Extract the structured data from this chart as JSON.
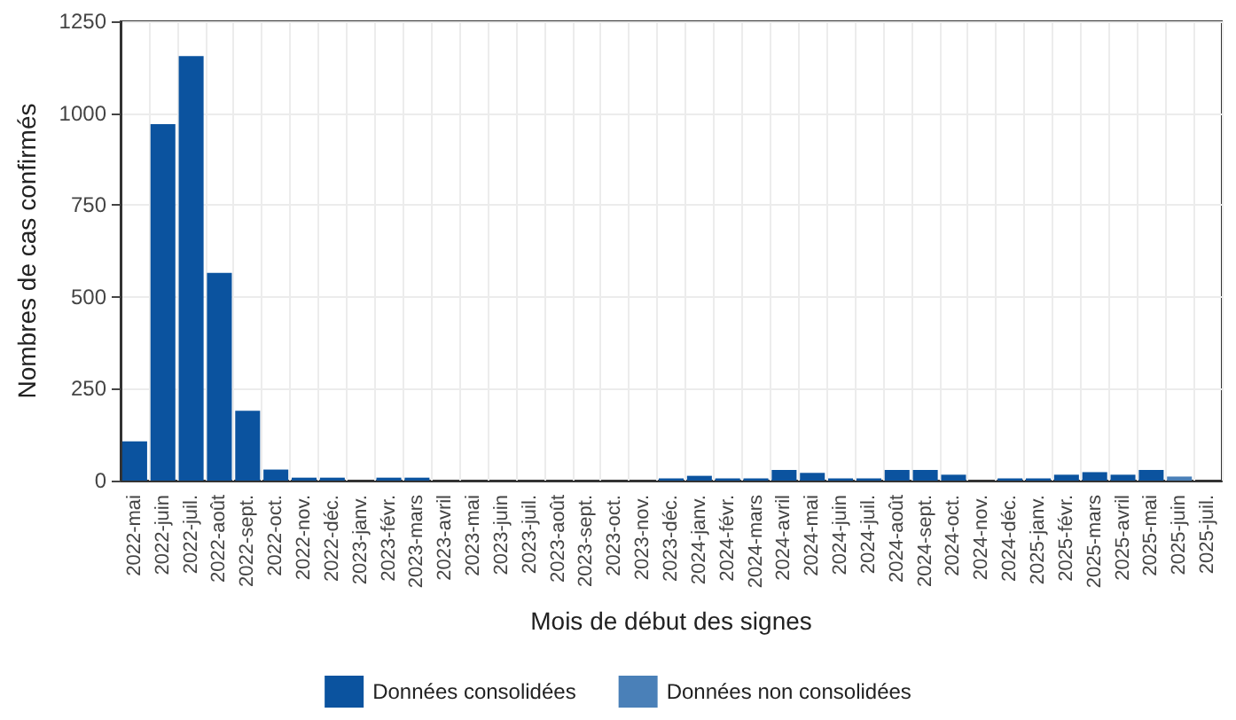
{
  "chart_data": {
    "type": "bar",
    "stacked": true,
    "xlabel": "Mois de début des signes",
    "ylabel": "Nombres de cas confirmés",
    "categories": [
      "2022-mai",
      "2022-juin",
      "2022-juil.",
      "2022-août",
      "2022-sept.",
      "2022-oct.",
      "2022-nov.",
      "2022-déc.",
      "2023-janv.",
      "2023-févr.",
      "2023-mars",
      "2023-avril",
      "2023-mai",
      "2023-juin",
      "2023-juil.",
      "2023-août",
      "2023-sept.",
      "2023-oct.",
      "2023-nov.",
      "2023-déc.",
      "2024-janv.",
      "2024-févr.",
      "2024-mars",
      "2024-avril",
      "2024-mai",
      "2024-juin",
      "2024-juil.",
      "2024-août",
      "2024-sept.",
      "2024-oct.",
      "2024-nov.",
      "2024-déc.",
      "2025-janv.",
      "2025-févr.",
      "2025-mars",
      "2025-avril",
      "2025-mai",
      "2025-juin",
      "2025-juil."
    ],
    "series": [
      {
        "name": "Données consolidées",
        "color": "#0b539f",
        "values": [
          107,
          970,
          1155,
          565,
          190,
          30,
          8,
          8,
          0,
          8,
          8,
          0,
          0,
          0,
          0,
          0,
          0,
          0,
          0,
          6,
          13,
          6,
          6,
          29,
          21,
          6,
          6,
          29,
          29,
          16,
          0,
          6,
          6,
          16,
          23,
          16,
          29,
          null,
          null
        ]
      },
      {
        "name": "Données non consolidées",
        "color": "#4a80b8",
        "values": [
          null,
          null,
          null,
          null,
          null,
          null,
          null,
          null,
          null,
          null,
          null,
          null,
          null,
          null,
          null,
          null,
          null,
          null,
          null,
          null,
          null,
          null,
          null,
          null,
          null,
          null,
          null,
          null,
          null,
          null,
          null,
          null,
          null,
          null,
          null,
          null,
          null,
          11,
          0
        ]
      }
    ],
    "ylim": [
      0,
      1250
    ],
    "yticks": [
      0,
      250,
      500,
      750,
      1000,
      1250
    ],
    "grid": true,
    "legend": "bottom"
  }
}
